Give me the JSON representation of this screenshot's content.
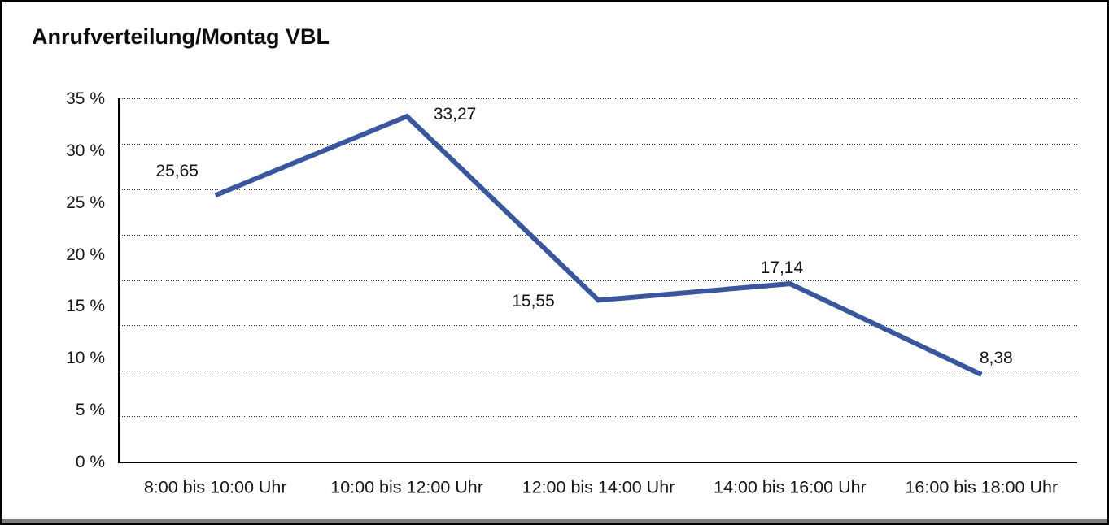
{
  "window": {
    "background": "#ffffff",
    "frame_color": "#000000",
    "bottom_edge_color": "#7d7d7d"
  },
  "chart_data": {
    "type": "line",
    "title": "Anrufverteilung/Montag VBL",
    "categories": [
      "8:00 bis 10:00 Uhr",
      "10:00 bis 12:00 Uhr",
      "12:00 bis 14:00 Uhr",
      "14:00 bis 16:00 Uhr",
      "16:00 bis 18:00 Uhr"
    ],
    "values": [
      25.65,
      33.27,
      15.55,
      17.14,
      8.38
    ],
    "value_labels": [
      "25,65",
      "33,27",
      "15,55",
      "17,14",
      "8,38"
    ],
    "y_ticks": [
      "35 %",
      "30 %",
      "25 %",
      "20 %",
      "15 %",
      "10 %",
      "5 %",
      "0 %"
    ],
    "ylim": [
      0,
      35
    ],
    "xlabel": "",
    "ylabel": "",
    "legend": "none",
    "grid": "horizontal-dotted",
    "series_color": "#3A579E",
    "axis_color": "#000000",
    "text_color": "#141414"
  }
}
